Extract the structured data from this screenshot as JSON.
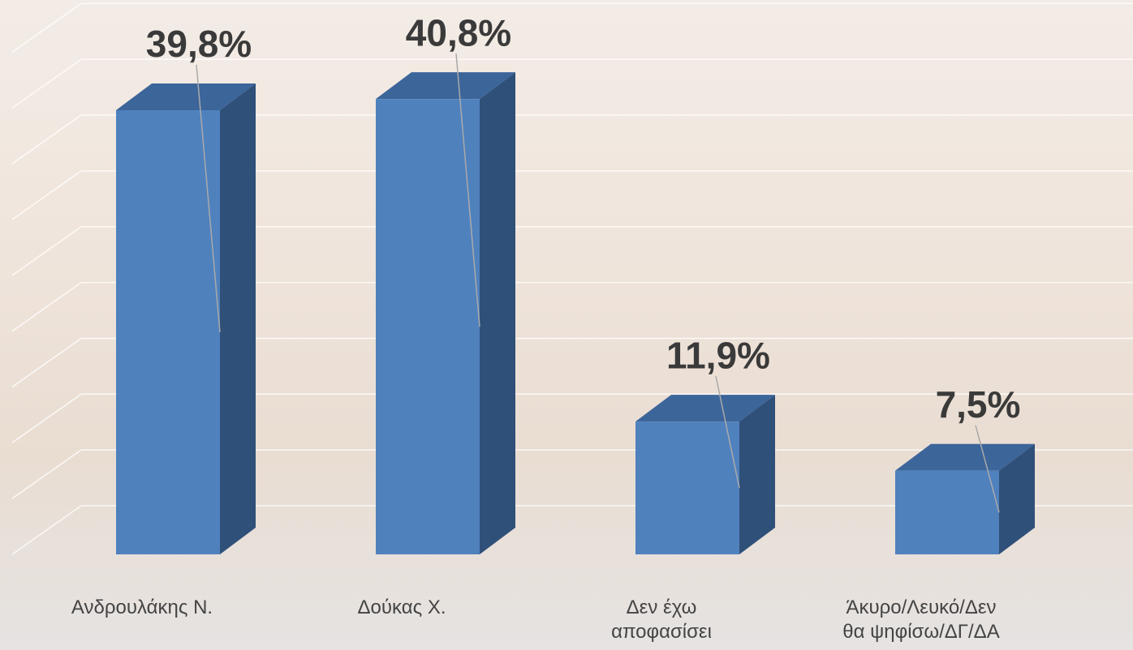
{
  "chart_data": {
    "type": "bar3d",
    "categories": [
      "Ανδρουλάκης Ν.",
      "Δούκας Χ.",
      "Δεν έχω αποφασίσει",
      "Άκυρο/Λευκό/Δεν θα ψηφίσω/ΔΓ/ΔΑ"
    ],
    "values": [
      39.8,
      40.8,
      11.9,
      7.5
    ],
    "value_labels": [
      "39,8%",
      "40,8%",
      "11,9%",
      "7,5%"
    ],
    "color": "#4f81bd",
    "ylim": [
      0,
      50
    ],
    "yticks": [
      0,
      5,
      10,
      15,
      20,
      25,
      30,
      35,
      40,
      45
    ],
    "grid": true
  }
}
